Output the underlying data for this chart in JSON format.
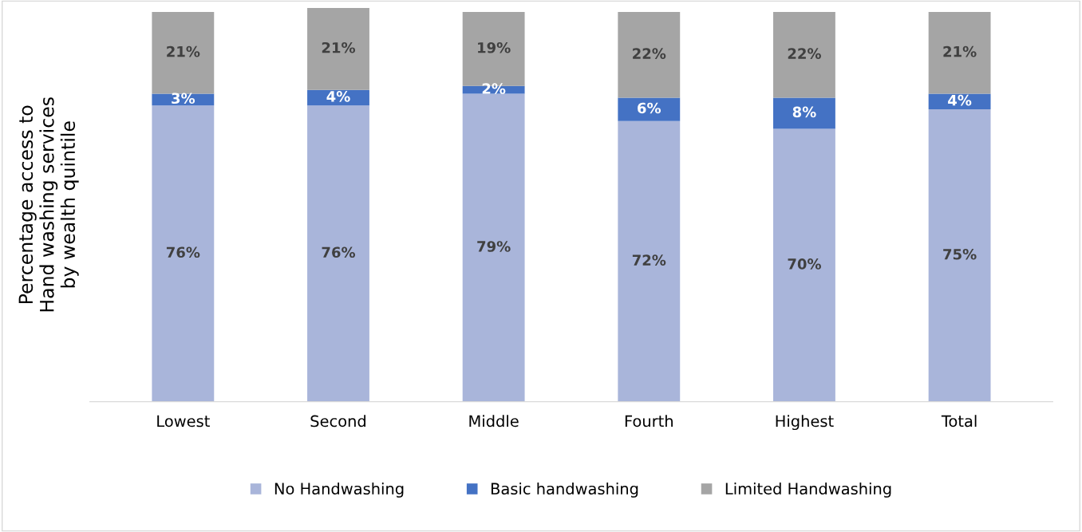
{
  "chart_data": {
    "type": "bar",
    "stacked": true,
    "ylabel": "Percentage access to\nHand washing services\nby wealth quintile",
    "categories": [
      "Lowest",
      "Second",
      "Middle",
      "Fourth",
      "Highest",
      "Total"
    ],
    "series": [
      {
        "name": "No Handwashing",
        "color": "#a9b5da",
        "values": [
          76,
          76,
          79,
          72,
          70,
          75
        ],
        "value_labels": [
          "76%",
          "76%",
          "79%",
          "72%",
          "70%",
          "75%"
        ]
      },
      {
        "name": "Basic handwashing",
        "color": "#4472c4",
        "values": [
          3,
          4,
          2,
          6,
          8,
          4
        ],
        "value_labels": [
          "3%",
          "4%",
          "2%",
          "6%",
          "8%",
          "4%"
        ]
      },
      {
        "name": "Limited Handwashing",
        "color": "#a5a5a5",
        "values": [
          21,
          21,
          19,
          22,
          22,
          21
        ],
        "value_labels": [
          "21%",
          "21%",
          "19%",
          "22%",
          "22%",
          "21%"
        ]
      }
    ],
    "grid": false,
    "legend": "bottom",
    "tick_labels": "x"
  }
}
